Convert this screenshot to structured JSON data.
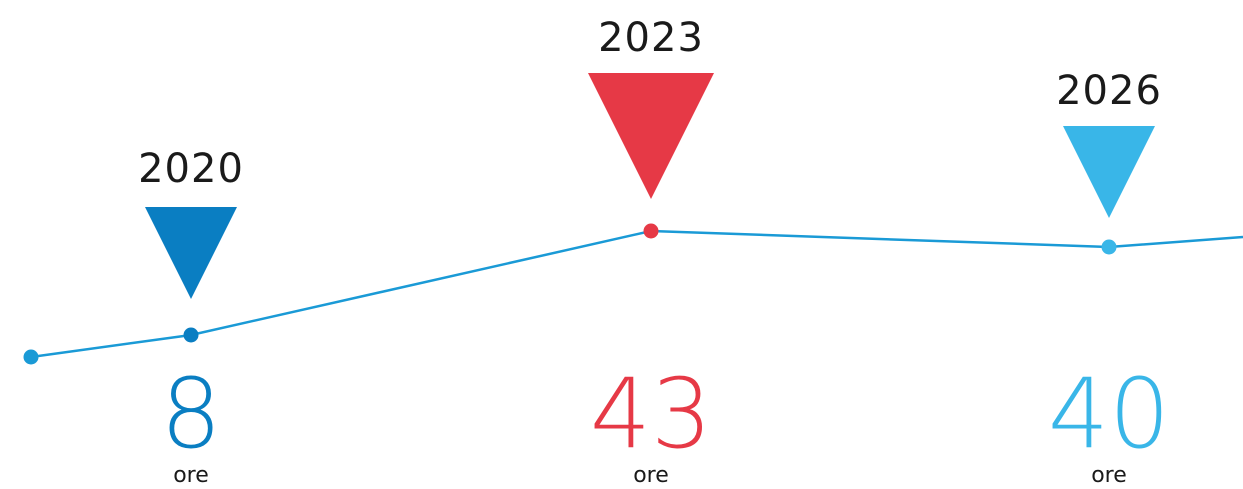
{
  "chart_data": {
    "type": "line",
    "line_color": "#1a9ad6",
    "points": [
      {
        "year": "",
        "value": null,
        "color": "#1a9ad6"
      },
      {
        "year": "2020",
        "value": "8",
        "unit": "ore",
        "color": "#0a7ec2"
      },
      {
        "year": "2023",
        "value": "43",
        "unit": "ore",
        "color": "#e63946"
      },
      {
        "year": "2026",
        "value": "40",
        "unit": "ore",
        "color": "#39b6e8"
      },
      {
        "year": "",
        "value": null,
        "color": "#1a9ad6"
      }
    ]
  }
}
